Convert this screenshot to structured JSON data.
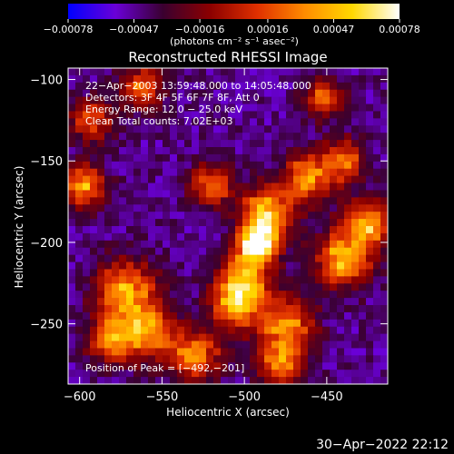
{
  "chart_data": {
    "type": "heatmap",
    "title": "Reconstructed RHESSI Image",
    "xlabel": "Heliocentric X (arcsec)",
    "ylabel": "Heliocentric Y (arcsec)",
    "xlim": [
      -607,
      -413
    ],
    "ylim": [
      -287,
      -93
    ],
    "x_ticks": [
      -600,
      -550,
      -500,
      -450
    ],
    "y_ticks": [
      -100,
      -150,
      -200,
      -250
    ],
    "x_tick_labels": [
      "−600",
      "−550",
      "−500",
      "−450"
    ],
    "y_tick_labels": [
      "−100",
      "−150",
      "−200",
      "−250"
    ],
    "colorbar": {
      "range": [
        -0.00078,
        0.00078
      ],
      "tick_values": [
        -0.00078,
        -0.00047,
        -0.00016,
        0.00016,
        0.00047,
        0.00078
      ],
      "tick_labels": [
        "−0.00078",
        "−0.00047",
        "−0.00016",
        "0.00016",
        "0.00047",
        "0.00078"
      ],
      "unit_label": "(photons cm⁻² s⁻¹ asec⁻²)",
      "colormap": [
        "#0000ff",
        "#6a00d8",
        "#3a0030",
        "#8c0000",
        "#e03000",
        "#ff8c00",
        "#ffd800",
        "#ffffff"
      ]
    },
    "annotations": [
      "22−Apr−2003 13:59:48.000 to 14:05:48.000",
      "Detectors: 3F 4F 5F 6F 7F 8F, Att 0",
      "Energy Range: 12.0 − 25.0 keV",
      "Clean     Total counts: 7.02E+03"
    ],
    "peak_label": "Position of Peak = [−492,−201]",
    "peak": {
      "x": -492,
      "y": -201,
      "value": 0.00078
    },
    "background_level": -0.00045,
    "bright_sources": [
      {
        "x": -492,
        "y": -201,
        "value": 0.00078,
        "sigma": 8
      },
      {
        "x": -486,
        "y": -182,
        "value": 0.00055,
        "sigma": 11
      },
      {
        "x": -500,
        "y": -223,
        "value": 0.00045,
        "sigma": 11
      },
      {
        "x": -506,
        "y": -240,
        "value": 0.00032,
        "sigma": 10
      },
      {
        "x": -520,
        "y": -165,
        "value": 0.00025,
        "sigma": 9
      },
      {
        "x": -572,
        "y": -230,
        "value": 0.0004,
        "sigma": 13
      },
      {
        "x": -558,
        "y": -255,
        "value": 0.00035,
        "sigma": 11
      },
      {
        "x": -580,
        "y": -260,
        "value": 0.00028,
        "sigma": 10
      },
      {
        "x": -598,
        "y": -165,
        "value": 0.0004,
        "sigma": 9
      },
      {
        "x": -592,
        "y": -125,
        "value": 0.00018,
        "sigma": 9
      },
      {
        "x": -562,
        "y": -105,
        "value": 0.00022,
        "sigma": 9
      },
      {
        "x": -440,
        "y": -210,
        "value": 0.00045,
        "sigma": 12
      },
      {
        "x": -425,
        "y": -188,
        "value": 0.0004,
        "sigma": 10
      },
      {
        "x": -462,
        "y": -160,
        "value": 0.00035,
        "sigma": 10
      },
      {
        "x": -440,
        "y": -150,
        "value": 0.00025,
        "sigma": 9
      },
      {
        "x": -475,
        "y": -250,
        "value": 0.0003,
        "sigma": 12
      },
      {
        "x": -478,
        "y": -275,
        "value": 0.00025,
        "sigma": 10
      },
      {
        "x": -452,
        "y": -112,
        "value": 0.0002,
        "sigma": 8
      },
      {
        "x": -530,
        "y": -270,
        "value": 0.0003,
        "sigma": 11
      }
    ]
  },
  "footer": {
    "timestamp": "30−Apr−2022 22:12"
  }
}
